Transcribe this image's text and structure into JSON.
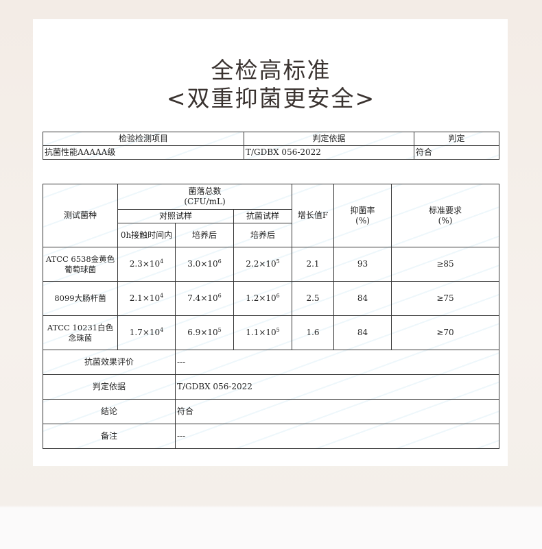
{
  "title": {
    "line1": "全检高标准",
    "line2": "<双重抑菌更安全>"
  },
  "summary_table": {
    "headers": [
      "检验检测项目",
      "判定依据",
      "判定"
    ],
    "row": [
      "抗菌性能AAAAA级",
      "T/GDBX 056-2022",
      "符合"
    ]
  },
  "result_table": {
    "h_strain": "测试菌种",
    "h_total": "菌落总数",
    "h_unit": "(CFU/mL)",
    "h_control": "对照试样",
    "h_antibac": "抗菌试样",
    "h_growth": "增长值F",
    "h_rate": "抑菌率",
    "h_rate_unit": "(%)",
    "h_std": "标准要求",
    "h_std_unit": "(%)",
    "h_0h": "0h接触时间内",
    "h_after1": "培养后",
    "h_after2": "培养后",
    "rows": [
      {
        "strain": "ATCC 6538金黄色葡萄球菌",
        "c0": "2.3×10",
        "c0e": "4",
        "c1": "3.0×10",
        "c1e": "6",
        "a1": "2.2×10",
        "a1e": "5",
        "f": "2.1",
        "rate": "93",
        "std": "≥85"
      },
      {
        "strain": "8099大肠杆菌",
        "c0": "2.1×10",
        "c0e": "4",
        "c1": "7.4×10",
        "c1e": "6",
        "a1": "1.2×10",
        "a1e": "6",
        "f": "2.5",
        "rate": "84",
        "std": "≥75"
      },
      {
        "strain": "ATCC 10231白色念珠菌",
        "c0": "1.7×10",
        "c0e": "4",
        "c1": "6.9×10",
        "c1e": "5",
        "a1": "1.1×10",
        "a1e": "5",
        "f": "1.6",
        "rate": "84",
        "std": "≥70"
      }
    ],
    "footer": [
      {
        "label": "抗菌效果评价",
        "value": "---"
      },
      {
        "label": "判定依据",
        "value": "T/GDBX 056-2022"
      },
      {
        "label": "结论",
        "value": "符合"
      },
      {
        "label": "备注",
        "value": "---"
      }
    ]
  }
}
